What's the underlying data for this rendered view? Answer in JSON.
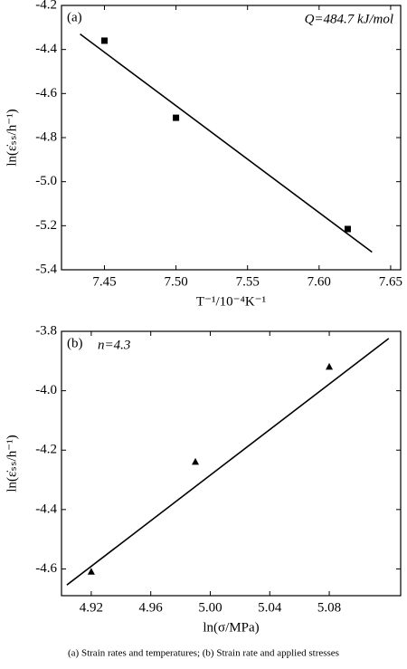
{
  "chart_data": [
    {
      "type": "scatter",
      "panel_label": "(a)",
      "annotation": "Q=484.7 kJ/mol",
      "x_label": "T⁻¹/10⁻⁴K⁻¹",
      "y_label": "ln(ε̇ₛₛ/h⁻¹)",
      "x": [
        7.45,
        7.5,
        7.62
      ],
      "values": [
        -4.36,
        -4.71,
        -5.215
      ],
      "marker": "square",
      "color": "#000000",
      "fit_line": {
        "x": [
          7.433,
          7.637
        ],
        "y": [
          -4.33,
          -5.32
        ]
      },
      "xlim": [
        7.42,
        7.657
      ],
      "ylim": [
        -5.4,
        -4.2
      ],
      "xticks": [
        7.45,
        {
          "value": 7.5,
          "label": "7.50"
        },
        7.55,
        {
          "value": 7.6,
          "label": "7.60"
        },
        7.65
      ],
      "yticks": [
        -4.2,
        -4.4,
        -4.6,
        -4.8,
        {
          "value": -5.0,
          "label": "-5.0"
        },
        -5.2,
        -5.4
      ]
    },
    {
      "type": "scatter",
      "panel_label": "(b)",
      "annotation": "n=4.3",
      "x_label": "ln(σ/MPa)",
      "y_label": "ln(ε̇ₛₛ/h⁻¹)",
      "x": [
        4.92,
        4.99,
        5.08
      ],
      "values": [
        -4.61,
        -4.24,
        -3.92
      ],
      "marker": "triangle",
      "color": "#000000",
      "fit_line": {
        "x": [
          4.9036,
          5.12
        ],
        "y": [
          -4.654,
          -3.824
        ]
      },
      "xlim": [
        4.9,
        5.128
      ],
      "ylim": [
        -4.69,
        -3.8
      ],
      "xticks": [
        4.92,
        4.96,
        {
          "value": 5.0,
          "label": "5.00"
        },
        5.04,
        5.08
      ],
      "yticks": [
        -3.8,
        {
          "value": -4.0,
          "label": "-4.0"
        },
        -4.2,
        -4.4,
        -4.6
      ]
    }
  ],
  "caption": "(a)   Strain   rates   and   temperatures; (b) Strain rate and applied stresses"
}
